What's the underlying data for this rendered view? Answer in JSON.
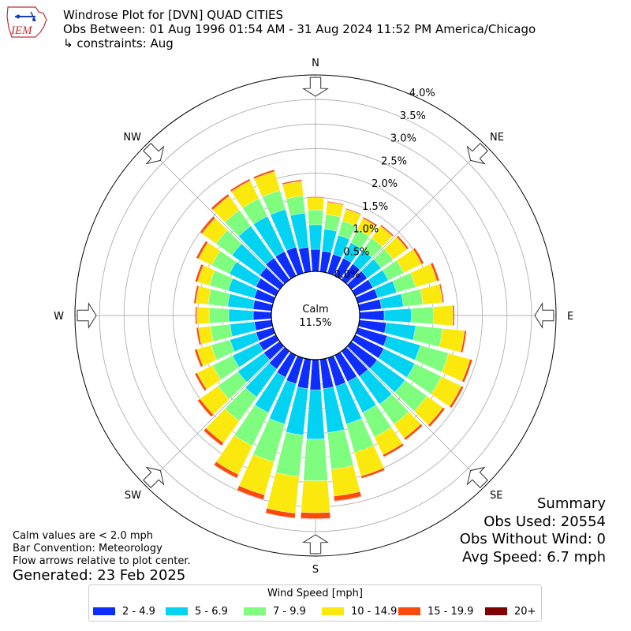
{
  "header": {
    "title": "Windrose Plot for [DVN] QUAD CITIES",
    "subtitle": "Obs Between: 01 Aug 1996 01:54 AM - 31 Aug 2024 11:52 PM America/Chicago",
    "constraints": "↳ constraints: Aug"
  },
  "logo": {
    "text": "IEM"
  },
  "notes": {
    "calm_note": "Calm values are < 2.0 mph",
    "bar_convention": "Bar Convention: Meteorology",
    "flow_arrows": "Flow arrows relative to plot center."
  },
  "generated": "Generated: 23 Feb 2025",
  "summary": {
    "heading": "Summary",
    "obs_used": "Obs Used: 20554",
    "obs_without_wind": "Obs Without Wind: 0",
    "avg_speed": "Avg Speed: 6.7 mph"
  },
  "legend": {
    "title": "Wind Speed [mph]",
    "items": [
      {
        "label": "2 - 4.9",
        "color": "#0d2efc"
      },
      {
        "label": "5 - 6.9",
        "color": "#03d3f3"
      },
      {
        "label": "7 - 9.9",
        "color": "#7ffd7e"
      },
      {
        "label": "10 - 14.9",
        "color": "#fbe80d"
      },
      {
        "label": "15 - 19.9",
        "color": "#fb4a0c"
      },
      {
        "label": "20+",
        "color": "#7f0000"
      }
    ]
  },
  "center": {
    "label": "Calm",
    "value": "11.5%"
  },
  "chart_data": {
    "type": "windrose",
    "title": "Windrose Plot for [DVN] QUAD CITIES",
    "calm_percent": 11.5,
    "radial_unit": "%",
    "radial_ticks": [
      "0.0%",
      "0.5%",
      "1.0%",
      "1.5%",
      "2.0%",
      "2.5%",
      "3.0%",
      "3.5%",
      "4.0%"
    ],
    "radial_range": [
      -0.9,
      4.0
    ],
    "compass_labels": [
      "N",
      "NE",
      "E",
      "SE",
      "S",
      "SW",
      "W",
      "NW"
    ],
    "directions_deg": [
      0,
      10,
      20,
      30,
      40,
      50,
      60,
      70,
      80,
      90,
      100,
      110,
      120,
      130,
      140,
      150,
      160,
      170,
      180,
      190,
      200,
      210,
      220,
      230,
      240,
      250,
      260,
      270,
      280,
      290,
      300,
      310,
      320,
      330,
      340,
      350
    ],
    "series": [
      {
        "name": "2 - 4.9",
        "values": [
          0.45,
          0.42,
          0.4,
          0.4,
          0.4,
          0.4,
          0.4,
          0.42,
          0.45,
          0.5,
          0.55,
          0.62,
          0.65,
          0.65,
          0.63,
          0.6,
          0.6,
          0.6,
          0.62,
          0.6,
          0.55,
          0.5,
          0.45,
          0.4,
          0.38,
          0.36,
          0.35,
          0.37,
          0.38,
          0.4,
          0.45,
          0.5,
          0.55,
          0.55,
          0.55,
          0.5
        ]
      },
      {
        "name": "5 - 6.9",
        "values": [
          0.5,
          0.45,
          0.4,
          0.35,
          0.35,
          0.35,
          0.35,
          0.4,
          0.45,
          0.55,
          0.6,
          0.7,
          0.7,
          0.7,
          0.7,
          0.7,
          0.8,
          0.9,
          1.0,
          0.95,
          0.85,
          0.8,
          0.7,
          0.65,
          0.6,
          0.55,
          0.5,
          0.5,
          0.52,
          0.55,
          0.6,
          0.7,
          0.8,
          0.8,
          0.8,
          0.7
        ]
      },
      {
        "name": "7 - 9.9",
        "values": [
          0.3,
          0.3,
          0.3,
          0.3,
          0.3,
          0.3,
          0.35,
          0.4,
          0.4,
          0.45,
          0.55,
          0.6,
          0.6,
          0.55,
          0.5,
          0.55,
          0.6,
          0.75,
          0.85,
          0.85,
          0.8,
          0.75,
          0.6,
          0.5,
          0.45,
          0.4,
          0.4,
          0.4,
          0.4,
          0.4,
          0.4,
          0.4,
          0.4,
          0.4,
          0.4,
          0.35
        ]
      },
      {
        "name": "10 - 14.9",
        "values": [
          0.25,
          0.25,
          0.25,
          0.25,
          0.3,
          0.35,
          0.4,
          0.45,
          0.4,
          0.4,
          0.45,
          0.45,
          0.45,
          0.4,
          0.35,
          0.4,
          0.5,
          0.55,
          0.65,
          0.75,
          0.7,
          0.65,
          0.55,
          0.45,
          0.35,
          0.3,
          0.25,
          0.25,
          0.25,
          0.25,
          0.3,
          0.35,
          0.35,
          0.4,
          0.4,
          0.3
        ]
      },
      {
        "name": "15 - 19.9",
        "values": [
          0.02,
          0.02,
          0.02,
          0.03,
          0.03,
          0.04,
          0.05,
          0.05,
          0.03,
          0.03,
          0.04,
          0.05,
          0.05,
          0.05,
          0.05,
          0.05,
          0.05,
          0.1,
          0.12,
          0.1,
          0.1,
          0.08,
          0.07,
          0.06,
          0.05,
          0.05,
          0.04,
          0.03,
          0.04,
          0.05,
          0.05,
          0.05,
          0.05,
          0.04,
          0.04,
          0.03
        ]
      },
      {
        "name": "20+",
        "values": [
          0,
          0,
          0,
          0,
          0,
          0,
          0,
          0,
          0,
          0,
          0,
          0,
          0,
          0,
          0,
          0,
          0,
          0.01,
          0.01,
          0,
          0,
          0,
          0,
          0,
          0,
          0,
          0,
          0,
          0,
          0,
          0,
          0,
          0,
          0,
          0,
          0
        ]
      }
    ],
    "grid": true,
    "legend_position": "bottom"
  }
}
